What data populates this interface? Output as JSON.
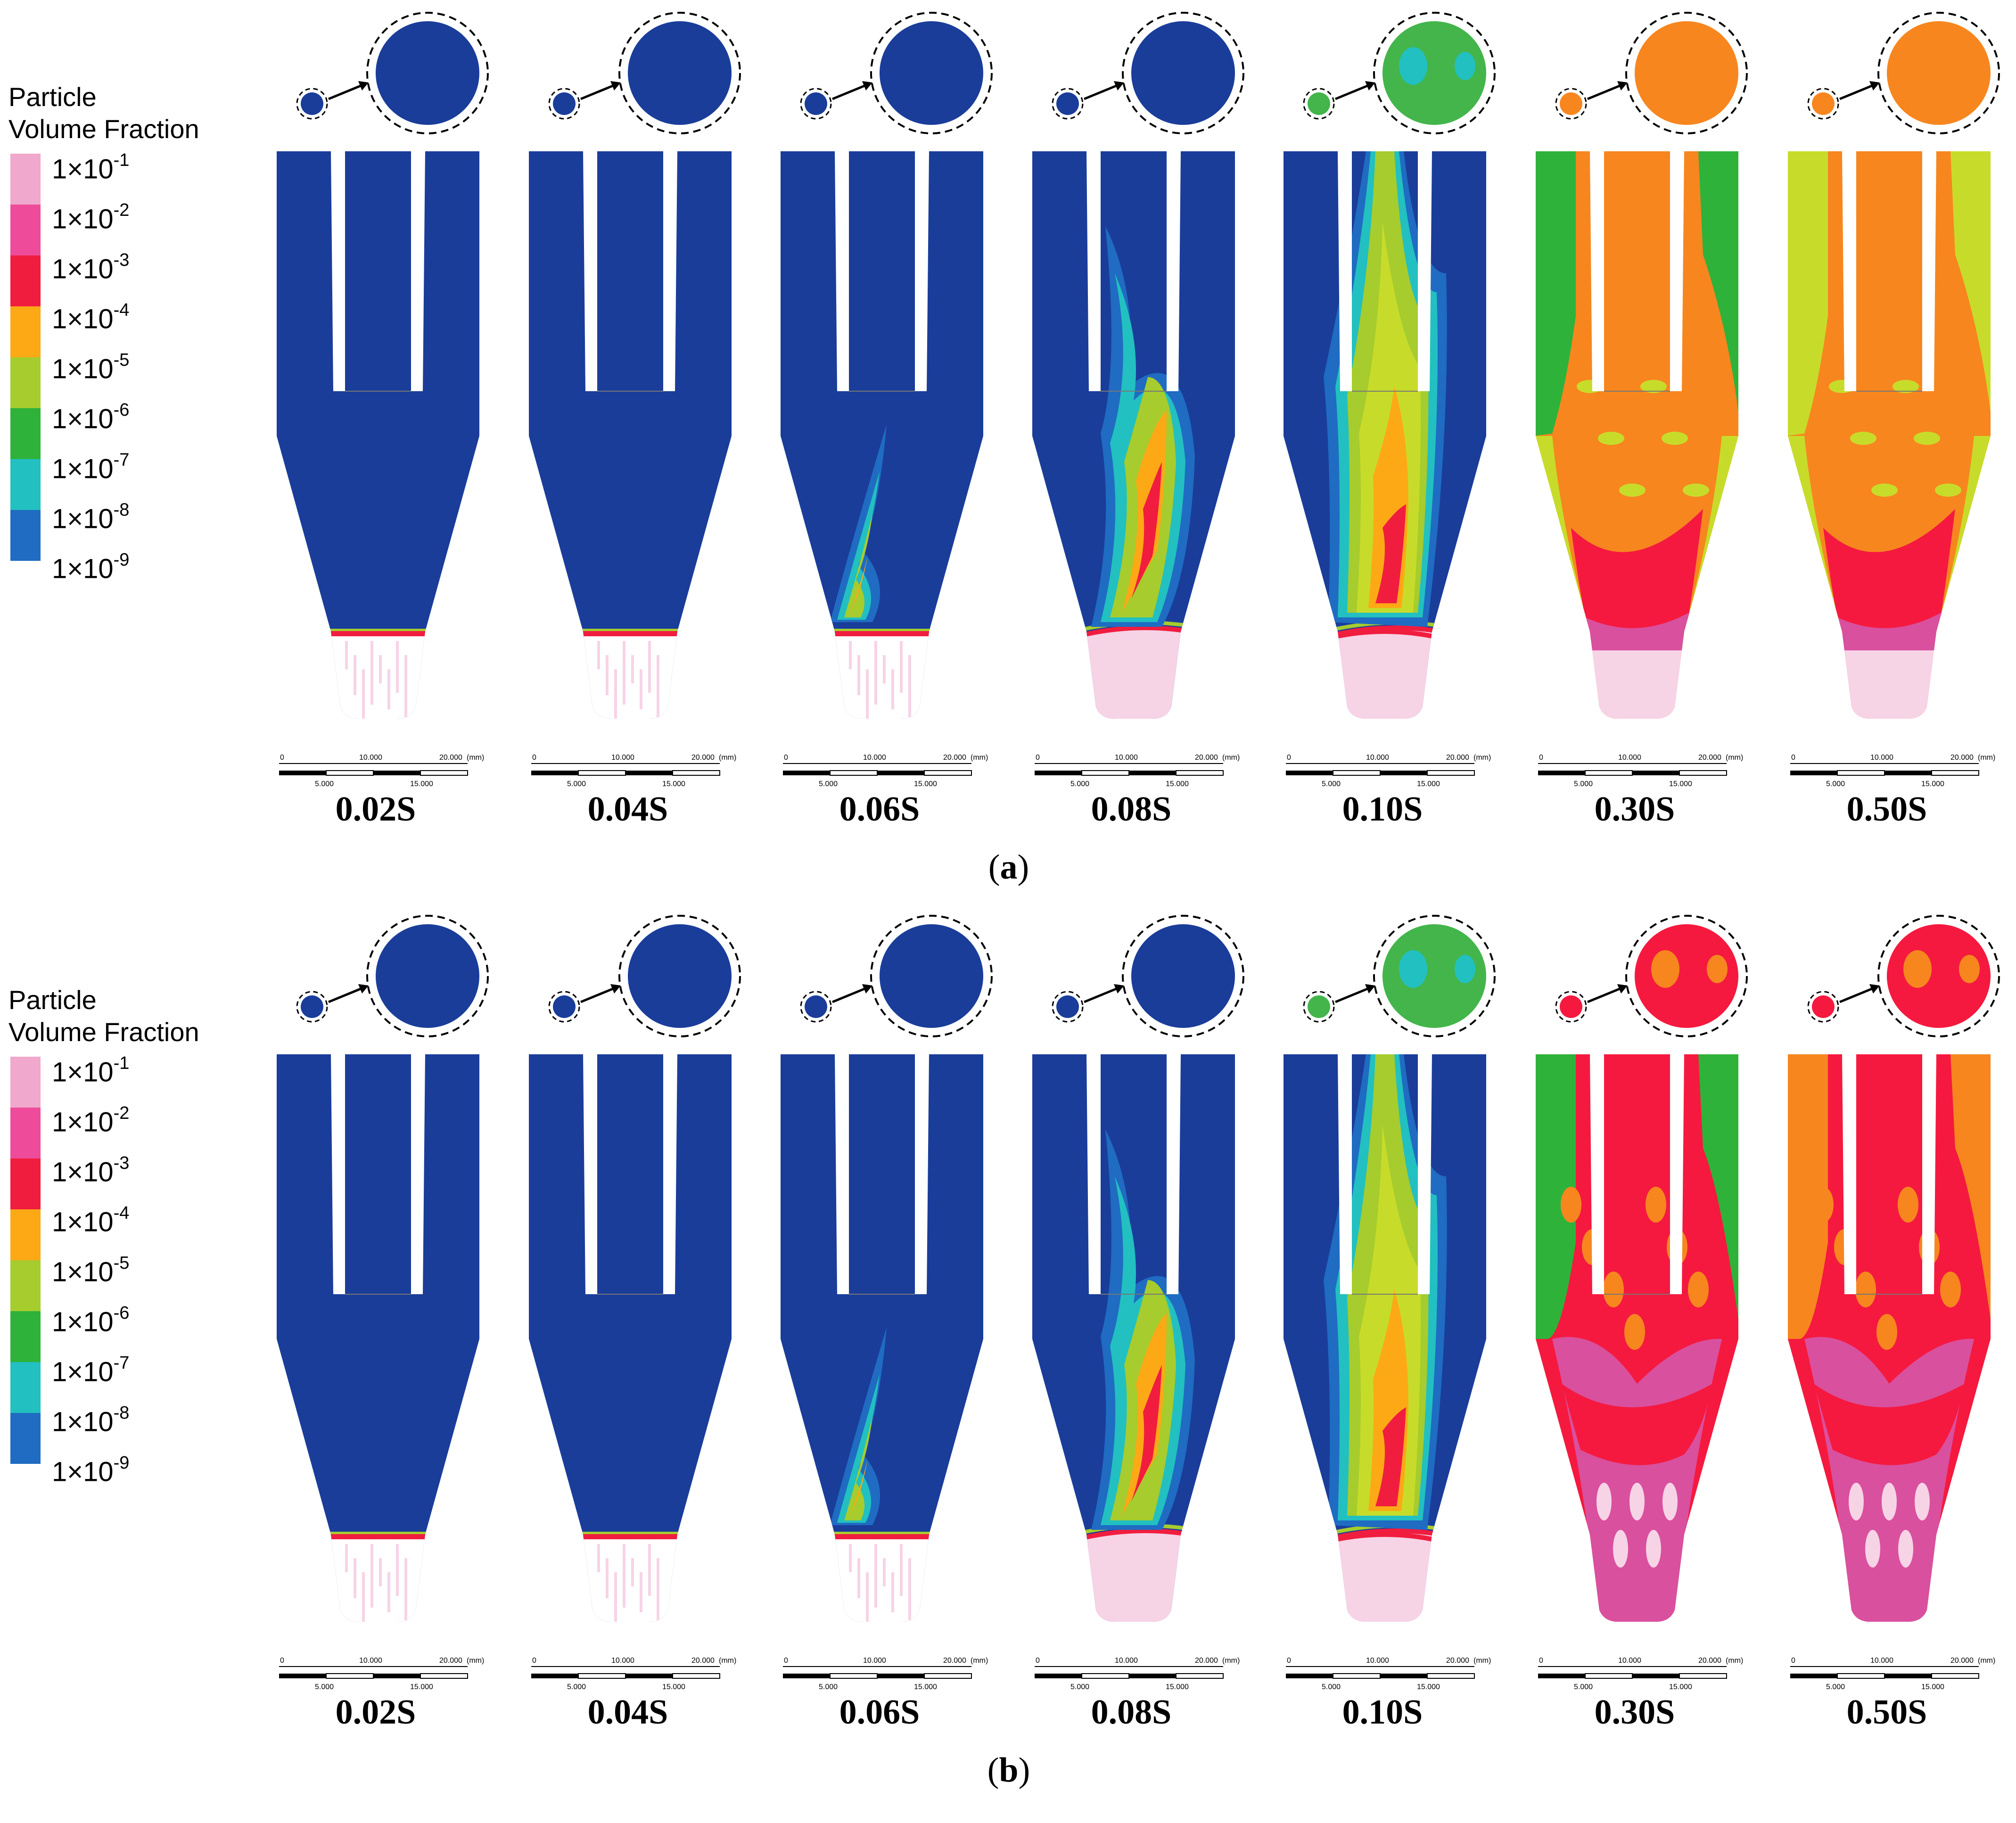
{
  "legend": {
    "title_line1": "Particle",
    "title_line2": "Volume Fraction",
    "levels": [
      {
        "mantissa": "1×10",
        "exponent": "-1",
        "color": "#f0a8cc"
      },
      {
        "mantissa": "1×10",
        "exponent": "-2",
        "color": "#ee4c9a"
      },
      {
        "mantissa": "1×10",
        "exponent": "-3",
        "color": "#f01d3f"
      },
      {
        "mantissa": "1×10",
        "exponent": "-4",
        "color": "#fca915"
      },
      {
        "mantissa": "1×10",
        "exponent": "-5",
        "color": "#a6cc2e"
      },
      {
        "mantissa": "1×10",
        "exponent": "-6",
        "color": "#2eb23a"
      },
      {
        "mantissa": "1×10",
        "exponent": "-7",
        "color": "#22c0c0"
      },
      {
        "mantissa": "1×10",
        "exponent": "-8",
        "color": "#1f6cc2"
      },
      {
        "mantissa": "1×10",
        "exponent": "-9",
        "color": ""
      }
    ]
  },
  "scale_bar": {
    "top_labels": [
      "0",
      "10.000",
      "20.000"
    ],
    "unit": "(mm)",
    "bottom_labels": [
      "5.000",
      "15.000"
    ]
  },
  "panels": [
    {
      "caption_letter": "a",
      "frames": [
        {
          "time": "0.02S",
          "stage": 0,
          "outlet_color": "#1a3d9a"
        },
        {
          "time": "0.04S",
          "stage": 0,
          "outlet_color": "#1a3d9a"
        },
        {
          "time": "0.06S",
          "stage": 1,
          "outlet_color": "#1a3d9a"
        },
        {
          "time": "0.08S",
          "stage": 2,
          "outlet_color": "#1a3d9a"
        },
        {
          "time": "0.10S",
          "stage": 3,
          "outlet_color": "#43b54b"
        },
        {
          "time": "0.30S",
          "stage": 4,
          "outlet_color": "#f7861f"
        },
        {
          "time": "0.50S",
          "stage": 5,
          "outlet_color": "#f7861f"
        }
      ]
    },
    {
      "caption_letter": "b",
      "frames": [
        {
          "time": "0.02S",
          "stage": 0,
          "outlet_color": "#1a3d9a"
        },
        {
          "time": "0.04S",
          "stage": 0,
          "outlet_color": "#1a3d9a"
        },
        {
          "time": "0.06S",
          "stage": 1,
          "outlet_color": "#1a3d9a"
        },
        {
          "time": "0.08S",
          "stage": 2,
          "outlet_color": "#1a3d9a"
        },
        {
          "time": "0.10S",
          "stage": 3,
          "outlet_color": "#43b54b"
        },
        {
          "time": "0.30S",
          "stage": 6,
          "outlet_color": "#f5193f"
        },
        {
          "time": "0.50S",
          "stage": 7,
          "outlet_color": "#f5193f"
        }
      ]
    }
  ]
}
